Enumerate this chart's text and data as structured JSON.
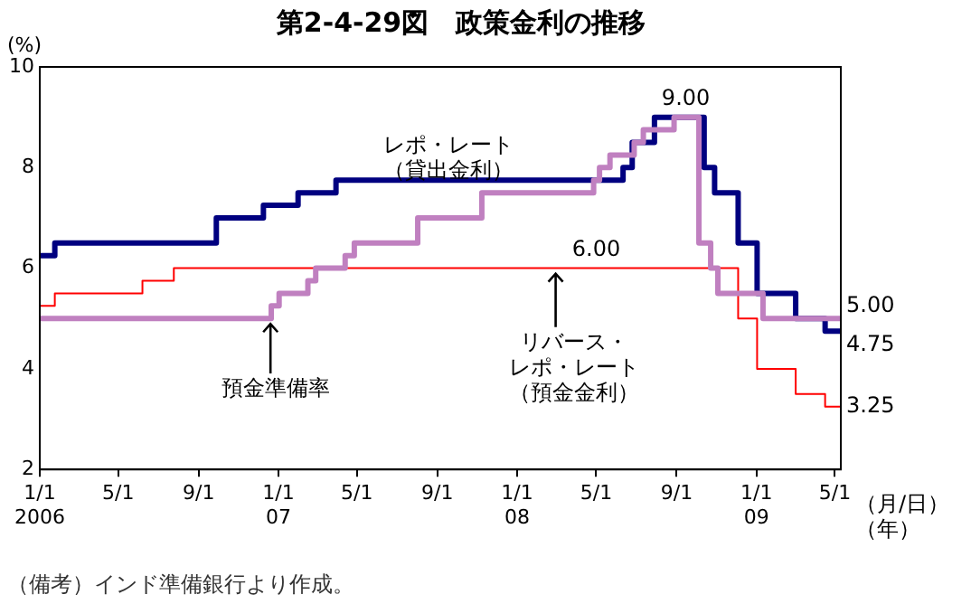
{
  "chart_data": {
    "type": "step",
    "title": "第2-4-29図　政策金利の推移",
    "ylabel": "(%)",
    "xlabel": "（月/日）（年）",
    "xlim": [
      "2006-01-01",
      "2009-05-10"
    ],
    "xticks": [
      {
        "value": "2006-01-01",
        "label": "1/1\n2006"
      },
      {
        "value": "2006-05-01",
        "label": "5/1"
      },
      {
        "value": "2006-09-01",
        "label": "9/1"
      },
      {
        "value": "2007-01-01",
        "label": "1/1\n07"
      },
      {
        "value": "2007-05-01",
        "label": "5/1"
      },
      {
        "value": "2007-09-01",
        "label": "9/1"
      },
      {
        "value": "2008-01-01",
        "label": "1/1\n08"
      },
      {
        "value": "2008-05-01",
        "label": "5/1"
      },
      {
        "value": "2008-09-01",
        "label": "9/1"
      },
      {
        "value": "2009-01-01",
        "label": "1/1\n09"
      },
      {
        "value": "2009-05-01",
        "label": "5/1"
      }
    ],
    "ylim": [
      2,
      10
    ],
    "yticks": [
      2,
      4,
      6,
      8,
      10
    ],
    "grid": false,
    "legend": false,
    "series": [
      {
        "name": "レポ・レート（貸出金利）",
        "color": "#000080",
        "x": [
          "2006-01-01",
          "2006-01-24",
          "2006-09-28",
          "2006-12-09",
          "2007-01-31",
          "2007-03-30",
          "2008-06-11",
          "2008-06-25",
          "2008-07-29",
          "2008-10-13",
          "2008-10-29",
          "2008-12-04",
          "2009-01-02",
          "2009-03-02",
          "2009-04-16",
          "2009-05-10"
        ],
        "values": [
          6.25,
          6.5,
          7.0,
          7.25,
          7.5,
          7.75,
          8.0,
          8.5,
          9.0,
          8.0,
          7.5,
          6.5,
          5.5,
          5.0,
          4.75,
          4.75
        ]
      },
      {
        "name": "リバース・レポ・レート（預金金利）",
        "color": "#ff0000",
        "x": [
          "2006-01-01",
          "2006-01-24",
          "2006-06-07",
          "2006-07-25",
          "2008-12-04",
          "2009-01-02",
          "2009-03-02",
          "2009-04-16",
          "2009-05-10"
        ],
        "values": [
          5.25,
          5.5,
          5.75,
          6.0,
          5.0,
          4.0,
          3.5,
          3.25,
          3.25
        ]
      },
      {
        "name": "預金準備率",
        "color": "#c080c0",
        "x": [
          "2006-01-01",
          "2006-12-21",
          "2007-01-02",
          "2007-02-15",
          "2007-02-27",
          "2007-04-13",
          "2007-04-27",
          "2007-08-02",
          "2007-11-08",
          "2008-04-27",
          "2008-05-06",
          "2008-05-22",
          "2008-06-28",
          "2008-07-12",
          "2008-08-28",
          "2008-10-05",
          "2008-10-23",
          "2008-11-03",
          "2009-01-11",
          "2009-05-10"
        ],
        "values": [
          5.0,
          5.25,
          5.5,
          5.75,
          6.0,
          6.25,
          6.5,
          7.0,
          7.5,
          7.75,
          8.0,
          8.25,
          8.5,
          8.75,
          9.0,
          6.5,
          6.0,
          5.5,
          5.0,
          5.0
        ]
      }
    ],
    "annotations": [
      "（備考）インド準備銀行より作成。",
      {
        "text": "9.00",
        "x": "2008-09-15",
        "y": 9
      },
      {
        "text": "6.00",
        "x": "2008-05-01",
        "y": 6
      },
      {
        "text": "5.00",
        "x": "2009-05-10",
        "y": 5
      },
      {
        "text": "4.75",
        "x": "2009-05-10",
        "y": 4.75
      },
      {
        "text": "3.25",
        "x": "2009-05-10",
        "y": 3.25
      }
    ]
  }
}
